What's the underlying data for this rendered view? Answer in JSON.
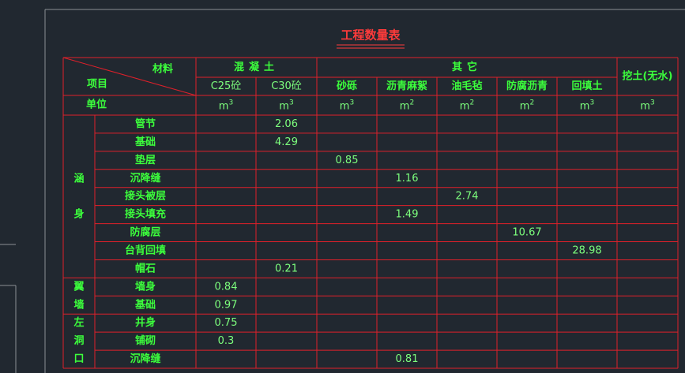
{
  "header": {
    "title": "工程数量表",
    "material_label": "材料",
    "item_label": "项目",
    "unit_label": "单位"
  },
  "column_groups": [
    {
      "label": "混凝土",
      "columns": [
        {
          "label": "C25砼",
          "unit": "m",
          "unit_exp": "3"
        },
        {
          "label": "C30砼",
          "unit": "m",
          "unit_exp": "3"
        }
      ]
    },
    {
      "label": "其它",
      "columns": [
        {
          "label": "砂砾",
          "unit": "m",
          "unit_exp": "3"
        },
        {
          "label": "沥青麻絮",
          "unit": "m",
          "unit_exp": "2"
        },
        {
          "label": "油毛毡",
          "unit": "m",
          "unit_exp": "2"
        },
        {
          "label": "防腐沥青",
          "unit": "m",
          "unit_exp": "2"
        },
        {
          "label": "回填土",
          "unit": "m",
          "unit_exp": "3"
        }
      ]
    },
    {
      "label": "挖土(无水)",
      "columns": [
        {
          "unit": "m",
          "unit_exp": "3"
        }
      ]
    }
  ],
  "groups": [
    {
      "label_chars": [
        "涵",
        "身"
      ],
      "rows": [
        {
          "item": "管节",
          "cells": [
            null,
            2.06,
            null,
            null,
            null,
            null,
            null,
            null
          ]
        },
        {
          "item": "基础",
          "cells": [
            null,
            4.29,
            null,
            null,
            null,
            null,
            null,
            null
          ]
        },
        {
          "item": "垫层",
          "cells": [
            null,
            null,
            0.85,
            null,
            null,
            null,
            null,
            null
          ]
        },
        {
          "item": "沉降缝",
          "cells": [
            null,
            null,
            null,
            1.16,
            null,
            null,
            null,
            null
          ]
        },
        {
          "item": "接头被层",
          "cells": [
            null,
            null,
            null,
            null,
            2.74,
            null,
            null,
            null
          ]
        },
        {
          "item": "接头填充",
          "cells": [
            null,
            null,
            null,
            1.49,
            null,
            null,
            null,
            null
          ]
        },
        {
          "item": "防腐层",
          "cells": [
            null,
            null,
            null,
            null,
            null,
            10.67,
            null,
            null
          ]
        },
        {
          "item": "台背回填",
          "cells": [
            null,
            null,
            null,
            null,
            null,
            null,
            28.98,
            null
          ]
        },
        {
          "item": "帽石",
          "cells": [
            null,
            0.21,
            null,
            null,
            null,
            null,
            null,
            null
          ]
        }
      ]
    },
    {
      "label_chars": [
        "翼",
        "墙"
      ],
      "rows": [
        {
          "item": "墙身",
          "cells": [
            0.84,
            null,
            null,
            null,
            null,
            null,
            null,
            null
          ]
        },
        {
          "item": "基础",
          "cells": [
            0.97,
            null,
            null,
            null,
            null,
            null,
            null,
            null
          ]
        }
      ]
    },
    {
      "label_chars": [
        "左",
        "洞",
        "口"
      ],
      "rows": [
        {
          "item": "井身",
          "cells": [
            0.75,
            null,
            null,
            null,
            null,
            null,
            null,
            null
          ]
        },
        {
          "item": "铺砌",
          "cells": [
            0.3,
            null,
            null,
            null,
            null,
            null,
            null,
            null
          ]
        },
        {
          "item": "沉降缝",
          "cells": [
            null,
            null,
            null,
            0.81,
            null,
            null,
            null,
            null
          ]
        }
      ]
    }
  ]
}
